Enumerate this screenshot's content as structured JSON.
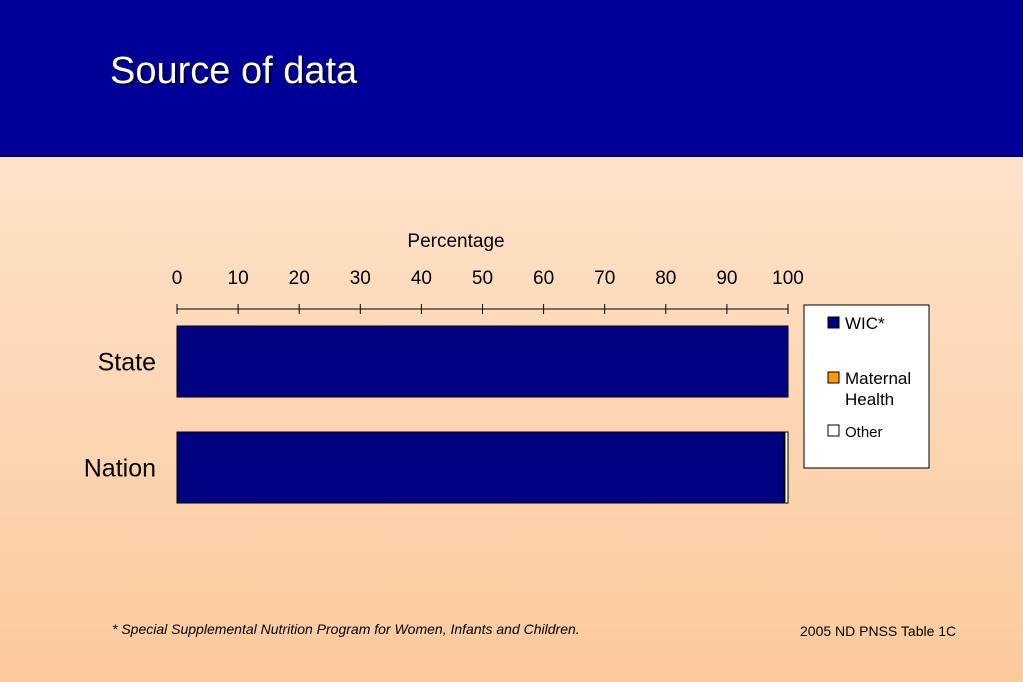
{
  "slide": {
    "title": "Source of data",
    "footnote": "*  Special Supplemental Nutrition Program for Women, Infants and Children.",
    "source": "2005 ND PNSS Table 1C"
  },
  "colors": {
    "header_bg": "#000099",
    "wic": "#000080",
    "maternal_health": "#ff9900",
    "other": "#ffffff"
  },
  "chart_data": {
    "type": "bar",
    "orientation": "horizontal",
    "stacked": true,
    "title": "",
    "xlabel": "Percentage",
    "ylabel": "",
    "xlim": [
      0,
      100
    ],
    "x_ticks": [
      0,
      10,
      20,
      30,
      40,
      50,
      60,
      70,
      80,
      90,
      100
    ],
    "x_axis_position": "top",
    "grid": false,
    "legend_position": "right",
    "categories": [
      "State",
      "Nation"
    ],
    "series": [
      {
        "name": "WIC*",
        "color": "#000080",
        "values": [
          100,
          99.4
        ]
      },
      {
        "name": "Maternal Health",
        "color": "#ff9900",
        "values": [
          0,
          0.1
        ]
      },
      {
        "name": "Other",
        "color": "#ffffff",
        "values": [
          0,
          0.5
        ]
      }
    ]
  }
}
